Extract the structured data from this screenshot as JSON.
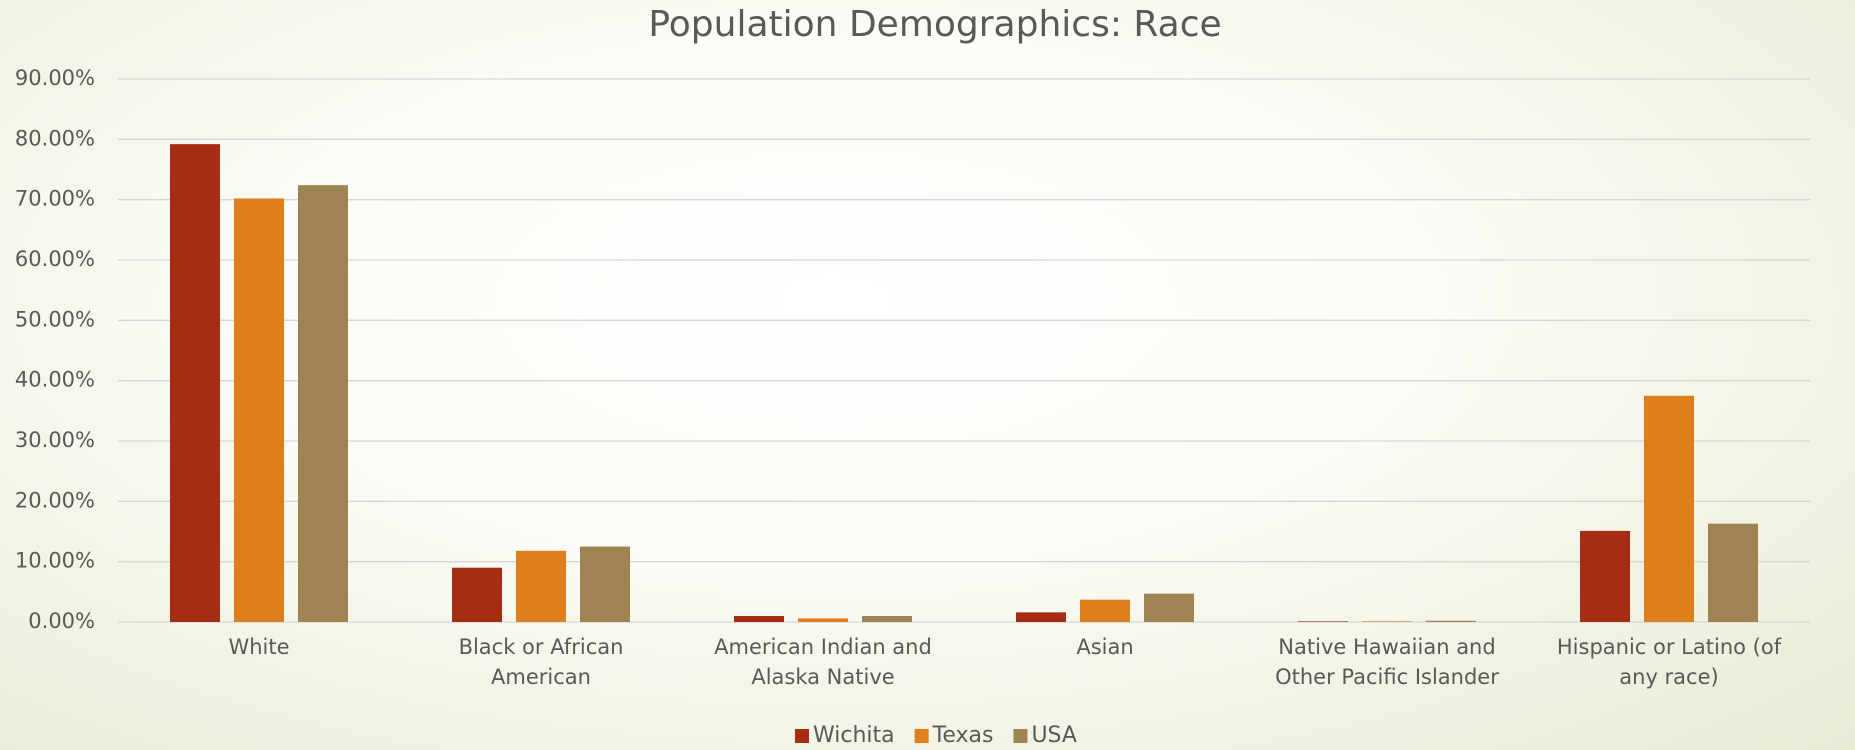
{
  "chart_data": {
    "type": "bar",
    "title": "Population Demographics: Race",
    "categories": [
      "White",
      "Black or African American",
      "American Indian and Alaska Native",
      "Asian",
      "Native Hawaiian and Other Pacific Islander",
      "Hispanic or Latino (of any race)"
    ],
    "series": [
      {
        "name": "Wichita",
        "color": "#a52d13",
        "values": [
          79.2,
          9.0,
          1.0,
          1.6,
          0.1,
          15.1
        ]
      },
      {
        "name": "Texas",
        "color": "#df7f1b",
        "values": [
          70.2,
          11.8,
          0.6,
          3.7,
          0.1,
          37.5
        ]
      },
      {
        "name": "USA",
        "color": "#9f8352",
        "values": [
          72.4,
          12.5,
          1.0,
          4.7,
          0.2,
          16.3
        ]
      }
    ],
    "ylim": [
      0,
      90
    ],
    "yticks": [
      {
        "value": 0,
        "label": "0.00%"
      },
      {
        "value": 10,
        "label": "10.00%"
      },
      {
        "value": 20,
        "label": "20.00%"
      },
      {
        "value": 30,
        "label": "30.00%"
      },
      {
        "value": 40,
        "label": "40.00%"
      },
      {
        "value": 50,
        "label": "50.00%"
      },
      {
        "value": 60,
        "label": "60.00%"
      },
      {
        "value": 70,
        "label": "70.00%"
      },
      {
        "value": 80,
        "label": "80.00%"
      },
      {
        "value": 90,
        "label": "90.00%"
      }
    ],
    "grid": true,
    "legend": "bottom"
  }
}
